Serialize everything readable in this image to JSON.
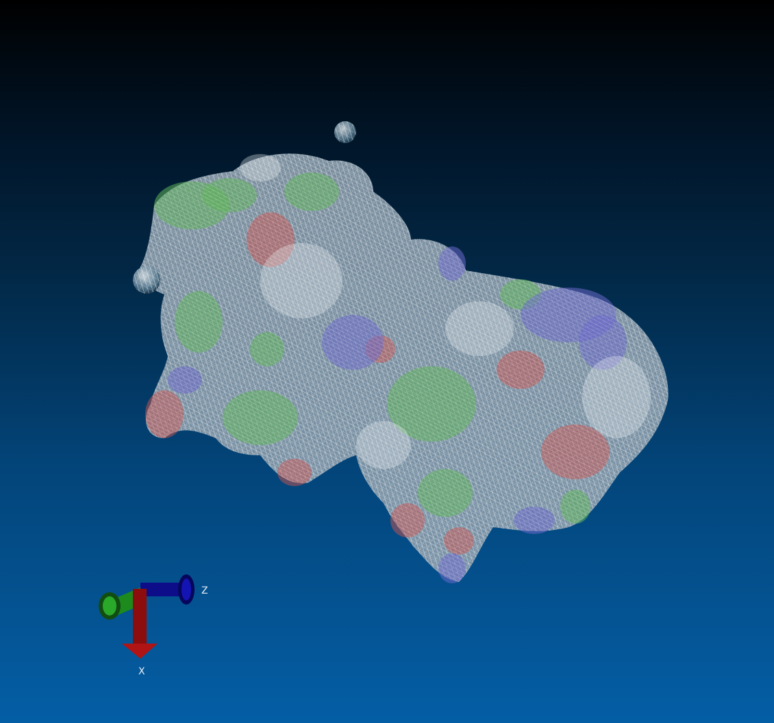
{
  "viewer": {
    "background": {
      "top": "#000000",
      "bottom": "#045ea5"
    },
    "surface": {
      "style": "wireframe molecular surface",
      "colors": {
        "carbon": "#d8dce0",
        "hydrophobic": "#6fbf5e",
        "negative": "#c45a55",
        "positive": "#6a68c4",
        "polar": "#8fb4cf"
      }
    },
    "axes": {
      "z_label": "Z",
      "x_label": "X",
      "colors": {
        "x": "#a01010",
        "y": "#1d8a1d",
        "z": "#1010a8"
      }
    }
  }
}
